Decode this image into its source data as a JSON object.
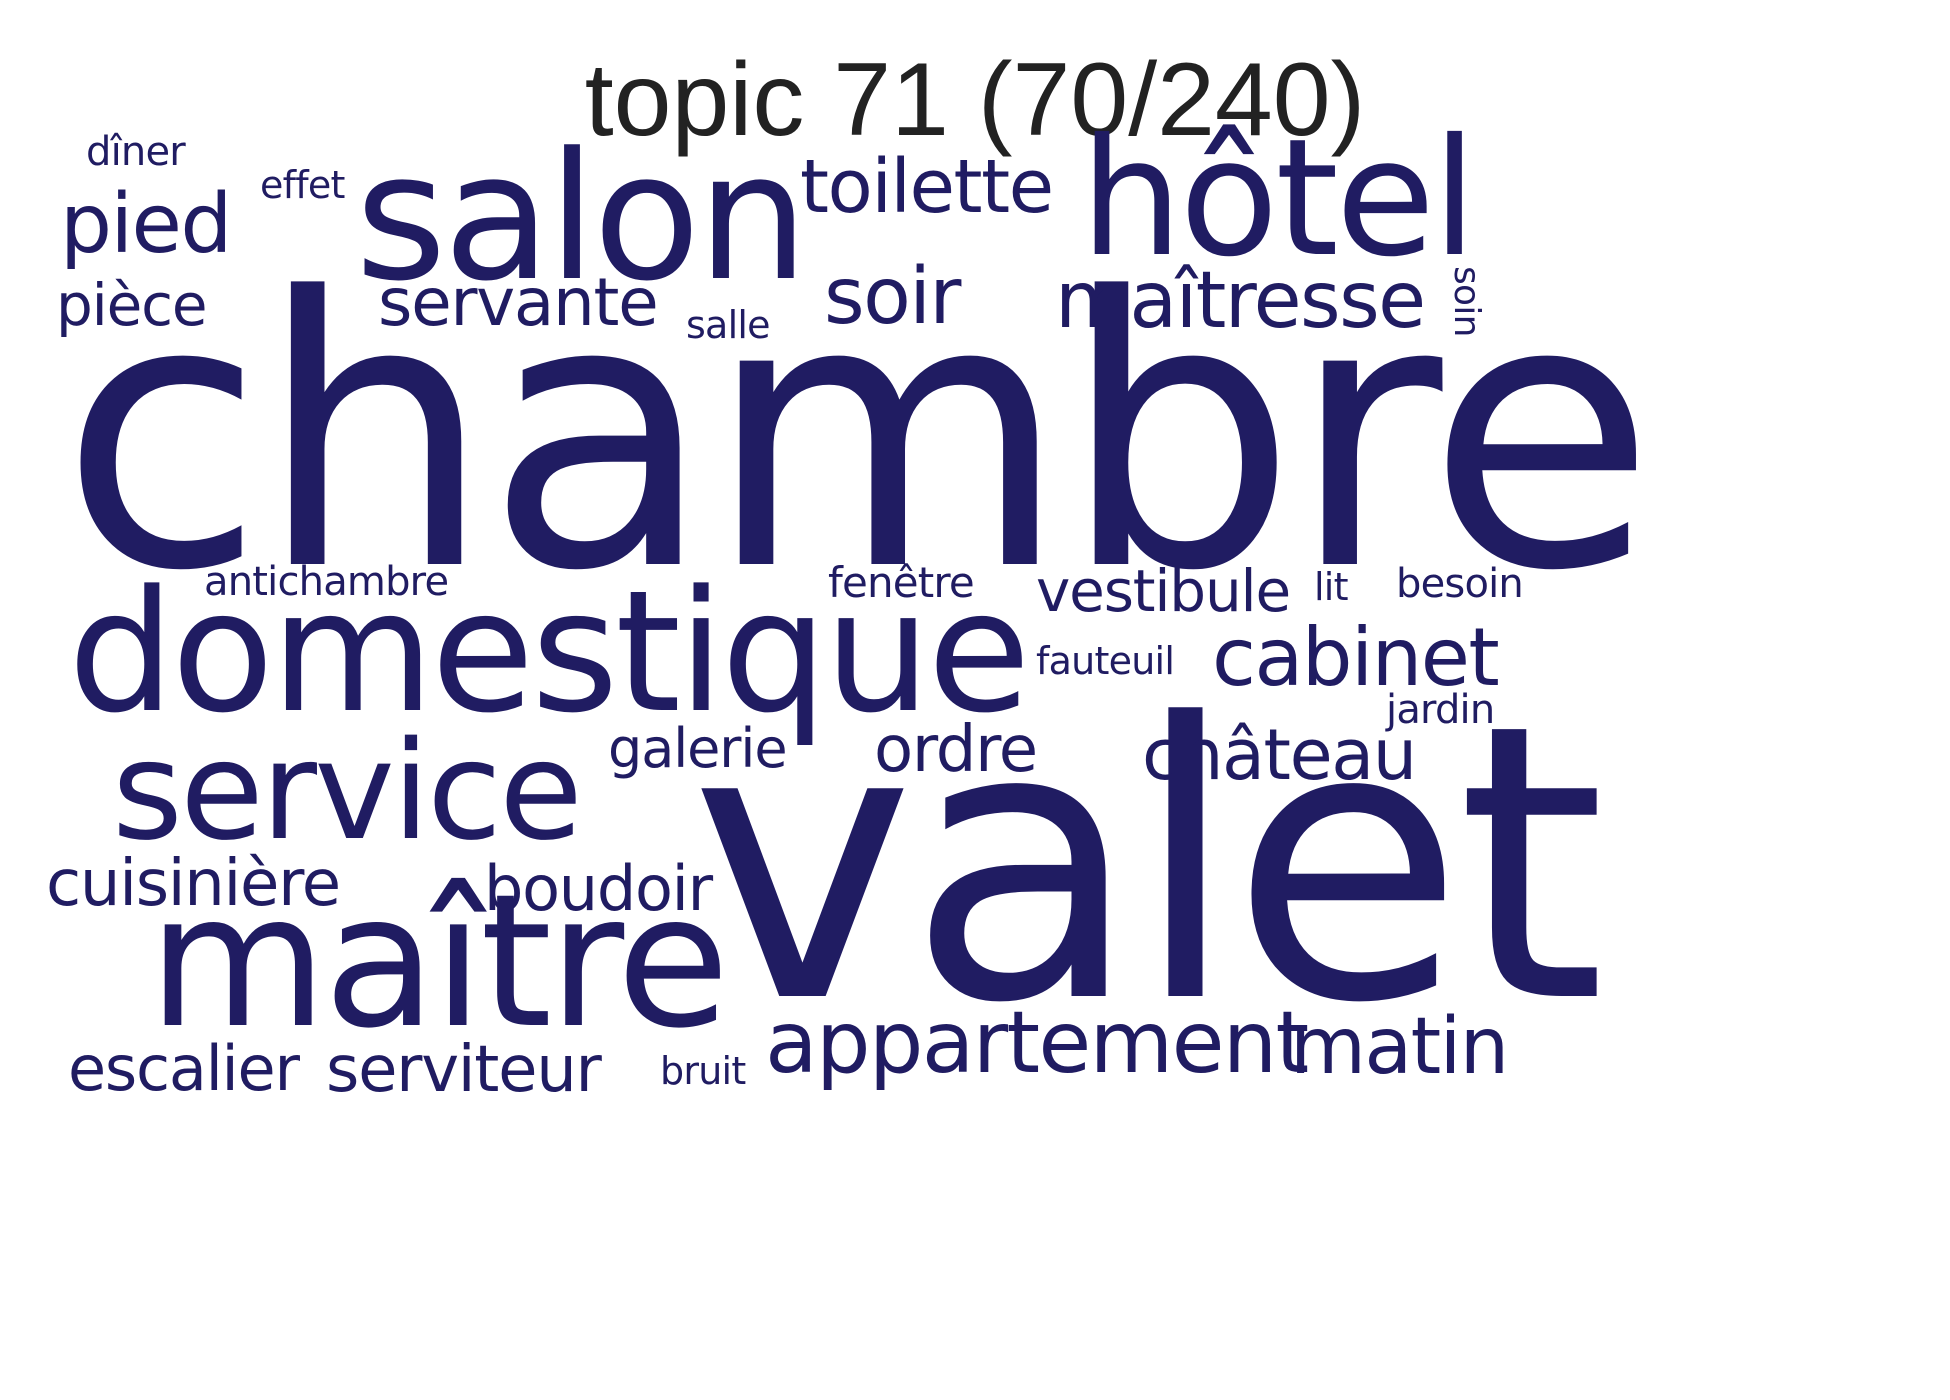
{
  "title": "topic 71 (70/240)",
  "word_color": "#201c62",
  "title_color": "#222222",
  "words": {
    "chambre": "chambre",
    "valet": "valet",
    "domestique": "domestique",
    "salon": "salon",
    "maitre": "maître",
    "hotel": "hôtel",
    "service": "service",
    "appartement": "appartement",
    "maitresse": "maîtresse",
    "toilette": "toilette",
    "cabinet": "cabinet",
    "soir": "soir",
    "pied": "pied",
    "servante": "servante",
    "chateau": "château",
    "matin": "matin",
    "cuisiniere": "cuisinière",
    "ordre": "ordre",
    "boudoir": "boudoir",
    "serviteur": "serviteur",
    "escalier": "escalier",
    "vestibule": "vestibule",
    "galerie": "galerie",
    "piece": "pièce",
    "antichambre": "antichambre",
    "fenetre": "fenêtre",
    "diner": "dîner",
    "effet": "effet",
    "salle": "salle",
    "soin": "soin",
    "lit": "lit",
    "besoin": "besoin",
    "fauteuil": "fauteuil",
    "jardin": "jardin",
    "bruit": "bruit"
  }
}
